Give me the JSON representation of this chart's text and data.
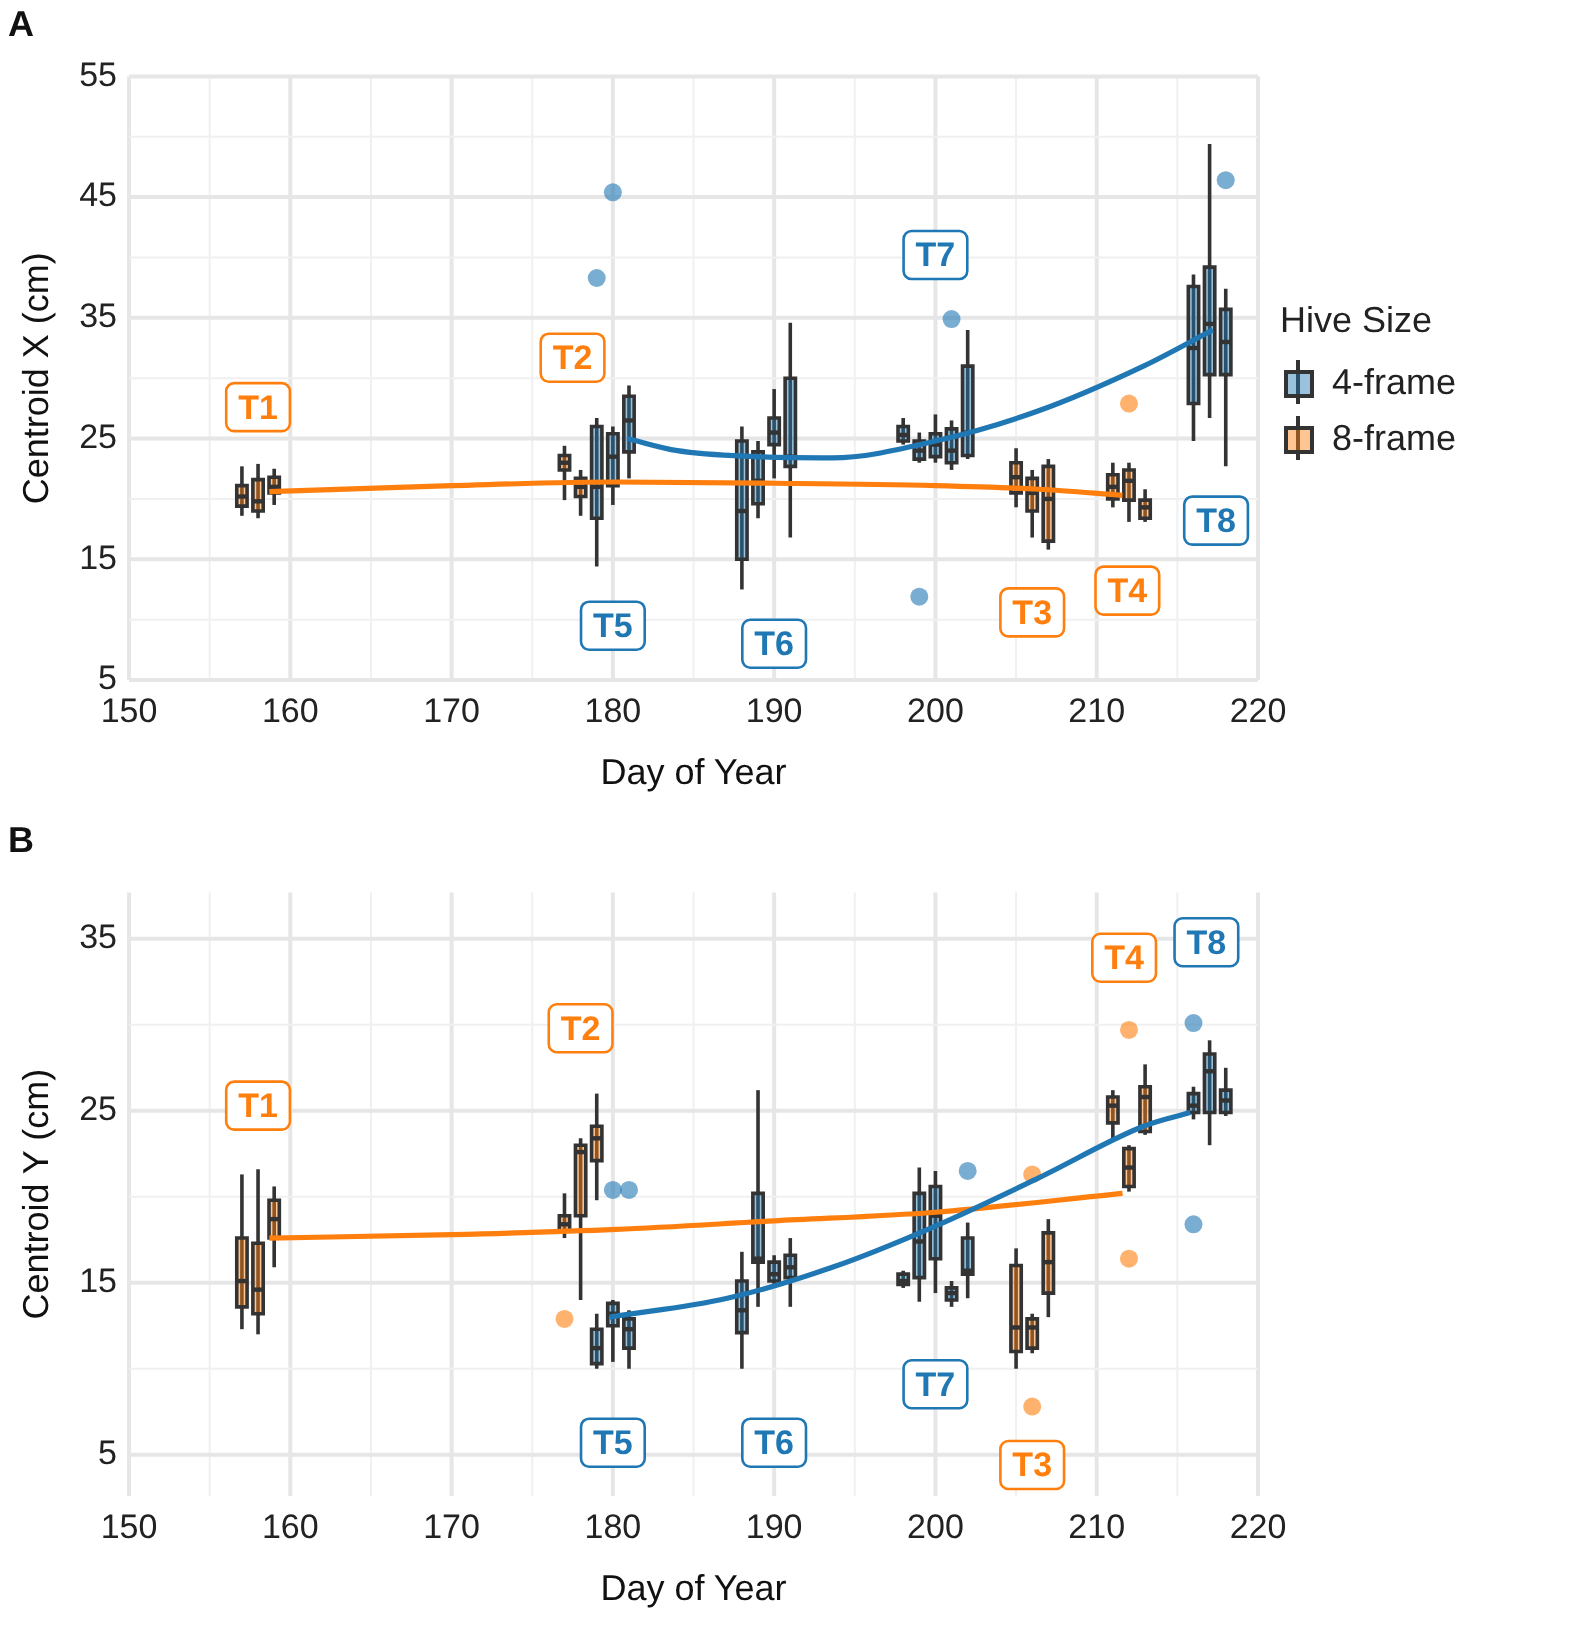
{
  "chart_data": [
    {
      "type": "box",
      "title": "A",
      "xlabel": "Day of Year",
      "ylabel": "Centroid X (cm)",
      "legend_title": "Hive Size",
      "legend": "right",
      "grid": true,
      "xlim": [
        150,
        220
      ],
      "xticks": [
        150,
        160,
        170,
        180,
        190,
        200,
        210,
        220
      ],
      "ylim": [
        5,
        55
      ],
      "yticks": [
        5,
        15,
        25,
        35,
        45,
        55
      ],
      "series": [
        {
          "name": "4-frame",
          "color": "#1f77b4",
          "x": [
            179,
            180,
            181,
            188,
            189,
            190,
            191,
            198,
            199,
            200,
            201,
            202,
            216,
            217,
            218
          ],
          "boxes": [
            {
              "low": 14.4,
              "q1": 18.4,
              "median": 21.0,
              "q3": 26.0,
              "high": 26.7,
              "outliers": [
                38.3
              ]
            },
            {
              "low": 19.5,
              "q1": 21.1,
              "median": 23.5,
              "q3": 25.4,
              "high": 26.0,
              "outliers": [
                45.4
              ]
            },
            {
              "low": 21.7,
              "q1": 23.9,
              "median": 26.5,
              "q3": 28.5,
              "high": 29.4
            },
            {
              "low": 12.5,
              "q1": 15.0,
              "median": 19.0,
              "q3": 24.8,
              "high": 26.0
            },
            {
              "low": 18.4,
              "q1": 19.6,
              "median": 21.5,
              "q3": 23.9,
              "high": 24.8
            },
            {
              "low": 21.7,
              "q1": 24.5,
              "median": 25.5,
              "q3": 26.7,
              "high": 29.1
            },
            {
              "low": 16.8,
              "q1": 22.7,
              "median": 23.5,
              "q3": 30.0,
              "high": 34.6
            },
            {
              "low": 24.5,
              "q1": 24.8,
              "median": 25.3,
              "q3": 26.0,
              "high": 26.7
            },
            {
              "low": 23.0,
              "q1": 23.3,
              "median": 24.0,
              "q3": 24.8,
              "high": 25.5,
              "outliers": [
                11.9
              ]
            },
            {
              "low": 23.0,
              "q1": 23.5,
              "median": 24.5,
              "q3": 25.4,
              "high": 27.0
            },
            {
              "low": 22.4,
              "q1": 23.0,
              "median": 24.0,
              "q3": 25.8,
              "high": 26.5,
              "outliers": [
                34.9
              ]
            },
            {
              "low": 23.3,
              "q1": 23.6,
              "median": 25.5,
              "q3": 31.0,
              "high": 34.0
            },
            {
              "low": 24.8,
              "q1": 27.9,
              "median": 32.5,
              "q3": 37.6,
              "high": 38.6
            },
            {
              "low": 26.7,
              "q1": 30.3,
              "median": 34.5,
              "q3": 39.2,
              "high": 49.4
            },
            {
              "low": 22.7,
              "q1": 30.3,
              "median": 33.0,
              "q3": 35.7,
              "high": 37.4,
              "outliers": [
                46.4
              ]
            }
          ]
        },
        {
          "name": "8-frame",
          "color": "#ff7f0e",
          "x": [
            157,
            158,
            159,
            177,
            178,
            205,
            206,
            207,
            211,
            212,
            213
          ],
          "boxes": [
            {
              "low": 18.6,
              "q1": 19.4,
              "median": 20.2,
              "q3": 21.1,
              "high": 22.7
            },
            {
              "low": 18.4,
              "q1": 19.0,
              "median": 19.8,
              "q3": 21.6,
              "high": 22.9
            },
            {
              "low": 19.5,
              "q1": 20.5,
              "median": 21.0,
              "q3": 21.8,
              "high": 22.5
            },
            {
              "low": 19.9,
              "q1": 22.4,
              "median": 23.0,
              "q3": 23.6,
              "high": 24.4
            },
            {
              "low": 18.6,
              "q1": 20.2,
              "median": 21.0,
              "q3": 21.7,
              "high": 22.4
            },
            {
              "low": 19.3,
              "q1": 20.5,
              "median": 21.8,
              "q3": 23.0,
              "high": 24.2
            },
            {
              "low": 16.8,
              "q1": 19.0,
              "median": 20.5,
              "q3": 21.7,
              "high": 22.4
            },
            {
              "low": 15.8,
              "q1": 16.5,
              "median": 20.0,
              "q3": 22.7,
              "high": 23.3
            },
            {
              "low": 19.3,
              "q1": 20.0,
              "median": 21.0,
              "q3": 22.0,
              "high": 23.0
            },
            {
              "low": 18.1,
              "q1": 19.9,
              "median": 21.5,
              "q3": 22.4,
              "high": 23.0,
              "outliers": [
                27.9
              ]
            },
            {
              "low": 18.1,
              "q1": 18.4,
              "median": 19.3,
              "q3": 19.9,
              "high": 20.8
            }
          ]
        },
        {
          "type": "line",
          "color": "#1f77b4",
          "x": [
            180.9,
            184,
            188.8,
            193.6,
            200,
            206.4,
            212.9,
            217.2
          ],
          "values": [
            25.0,
            24.0,
            23.5,
            23.4,
            24.8,
            27.3,
            31.0,
            34.0
          ]
        },
        {
          "type": "line",
          "color": "#ff7f0e",
          "x": [
            158.7,
            170,
            180.2,
            190,
            200,
            206.4,
            211.6
          ],
          "values": [
            20.6,
            21.1,
            21.4,
            21.3,
            21.1,
            20.8,
            20.3
          ]
        }
      ],
      "annotations": [
        {
          "text": "T1",
          "x": 158,
          "y": 27.6
        },
        {
          "text": "T2",
          "x": 177.5,
          "y": 31.7
        },
        {
          "text": "T5",
          "x": 180,
          "y": 9.5
        },
        {
          "text": "T6",
          "x": 190,
          "y": 8.0
        },
        {
          "text": "T7",
          "x": 200,
          "y": 40.2
        },
        {
          "text": "T3",
          "x": 206,
          "y": 10.6
        },
        {
          "text": "T4",
          "x": 211.9,
          "y": 12.4
        },
        {
          "text": "T8",
          "x": 217.4,
          "y": 18.2
        }
      ]
    },
    {
      "type": "box",
      "title": "B",
      "xlabel": "Day of Year",
      "ylabel": "Centroid Y (cm)",
      "grid": true,
      "xlim": [
        150,
        220
      ],
      "xticks": [
        150,
        160,
        170,
        180,
        190,
        200,
        210,
        220
      ],
      "ylim": [
        2.6,
        37.7
      ],
      "yticks": [
        5,
        15,
        25,
        35
      ],
      "series": [
        {
          "color": "#1f77b4",
          "x": [
            179,
            180,
            181,
            188,
            189,
            190,
            191,
            198,
            199,
            200,
            201,
            202,
            216,
            217,
            218
          ],
          "boxes": [
            {
              "low": 10.0,
              "q1": 10.3,
              "median": 11.2,
              "q3": 12.3,
              "high": 13.2
            },
            {
              "low": 10.4,
              "q1": 12.5,
              "median": 13.2,
              "q3": 13.8,
              "high": 14.0,
              "outliers": [
                20.4
              ]
            },
            {
              "low": 10.0,
              "q1": 11.2,
              "median": 12.3,
              "q3": 12.9,
              "high": 13.4,
              "outliers": [
                20.4
              ]
            },
            {
              "low": 10.0,
              "q1": 12.1,
              "median": 13.4,
              "q3": 15.1,
              "high": 16.8
            },
            {
              "low": 13.6,
              "q1": 16.2,
              "median": 16.4,
              "q3": 20.2,
              "high": 26.2
            },
            {
              "low": 14.7,
              "q1": 15.1,
              "median": 15.5,
              "q3": 16.2,
              "high": 16.6
            },
            {
              "low": 13.6,
              "q1": 15.3,
              "median": 15.9,
              "q3": 16.6,
              "high": 17.6
            },
            {
              "low": 14.7,
              "q1": 14.9,
              "median": 15.1,
              "q3": 15.5,
              "high": 15.7
            },
            {
              "low": 13.9,
              "q1": 15.3,
              "median": 17.4,
              "q3": 20.2,
              "high": 21.7
            },
            {
              "low": 14.4,
              "q1": 16.4,
              "median": 18.9,
              "q3": 20.6,
              "high": 21.5
            },
            {
              "low": 13.6,
              "q1": 14.0,
              "median": 14.4,
              "q3": 14.7,
              "high": 15.1
            },
            {
              "low": 14.1,
              "q1": 15.5,
              "median": 15.7,
              "q3": 17.6,
              "high": 18.5,
              "outliers": [
                21.5
              ]
            },
            {
              "low": 24.5,
              "q1": 24.9,
              "median": 25.3,
              "q3": 26.0,
              "high": 26.4,
              "outliers": [
                30.1,
                18.4
              ]
            },
            {
              "low": 23.0,
              "q1": 24.9,
              "median": 27.3,
              "q3": 28.3,
              "high": 29.1
            },
            {
              "low": 24.7,
              "q1": 24.9,
              "median": 25.6,
              "q3": 26.2,
              "high": 27.5
            }
          ]
        },
        {
          "color": "#ff7f0e",
          "x": [
            157,
            158,
            159,
            177,
            178,
            179,
            205,
            206,
            207,
            211,
            212,
            213
          ],
          "boxes": [
            {
              "low": 12.3,
              "q1": 13.6,
              "median": 15.1,
              "q3": 17.6,
              "high": 21.3
            },
            {
              "low": 12.0,
              "q1": 13.2,
              "median": 14.6,
              "q3": 17.3,
              "high": 21.6
            },
            {
              "low": 15.9,
              "q1": 17.6,
              "median": 18.7,
              "q3": 19.8,
              "high": 20.6
            },
            {
              "low": 17.6,
              "q1": 18.0,
              "median": 18.4,
              "q3": 18.9,
              "high": 20.2,
              "outliers": [
                12.9
              ]
            },
            {
              "low": 14.0,
              "q1": 18.9,
              "median": 22.6,
              "q3": 23.0,
              "high": 23.4
            },
            {
              "low": 19.8,
              "q1": 22.1,
              "median": 23.4,
              "q3": 24.1,
              "high": 26.0
            },
            {
              "low": 10.0,
              "q1": 11.0,
              "median": 12.4,
              "q3": 16.0,
              "high": 17.0
            },
            {
              "low": 10.9,
              "q1": 11.2,
              "median": 12.4,
              "q3": 12.9,
              "high": 13.2,
              "outliers": [
                21.3,
                7.8
              ]
            },
            {
              "low": 13.0,
              "q1": 14.4,
              "median": 16.2,
              "q3": 17.9,
              "high": 18.7
            },
            {
              "low": 23.4,
              "q1": 24.3,
              "median": 25.3,
              "q3": 25.8,
              "high": 26.2
            },
            {
              "low": 20.3,
              "q1": 20.6,
              "median": 21.7,
              "q3": 22.8,
              "high": 23.0,
              "outliers": [
                29.7,
                16.4
              ]
            },
            {
              "low": 23.6,
              "q1": 23.8,
              "median": 25.8,
              "q3": 26.4,
              "high": 27.7
            }
          ]
        },
        {
          "type": "line",
          "color": "#1f77b4",
          "x": [
            179.8,
            187.1,
            193.6,
            200,
            206.4,
            212.9,
            215.8
          ],
          "values": [
            13.0,
            14.1,
            15.9,
            18.3,
            21.1,
            24.1,
            24.9
          ]
        },
        {
          "type": "line",
          "color": "#ff7f0e",
          "x": [
            158.7,
            170,
            180.2,
            190,
            200,
            211.6
          ],
          "values": [
            17.6,
            17.8,
            18.1,
            18.6,
            19.1,
            20.2
          ]
        }
      ],
      "annotations": [
        {
          "text": "T1",
          "x": 158,
          "y": 25.3
        },
        {
          "text": "T2",
          "x": 178,
          "y": 29.8
        },
        {
          "text": "T5",
          "x": 180,
          "y": 5.7
        },
        {
          "text": "T6",
          "x": 190,
          "y": 5.7
        },
        {
          "text": "T7",
          "x": 200,
          "y": 9.1
        },
        {
          "text": "T3",
          "x": 206,
          "y": 4.4
        },
        {
          "text": "T4",
          "x": 211.7,
          "y": 33.9
        },
        {
          "text": "T8",
          "x": 216.8,
          "y": 34.8
        }
      ]
    }
  ]
}
